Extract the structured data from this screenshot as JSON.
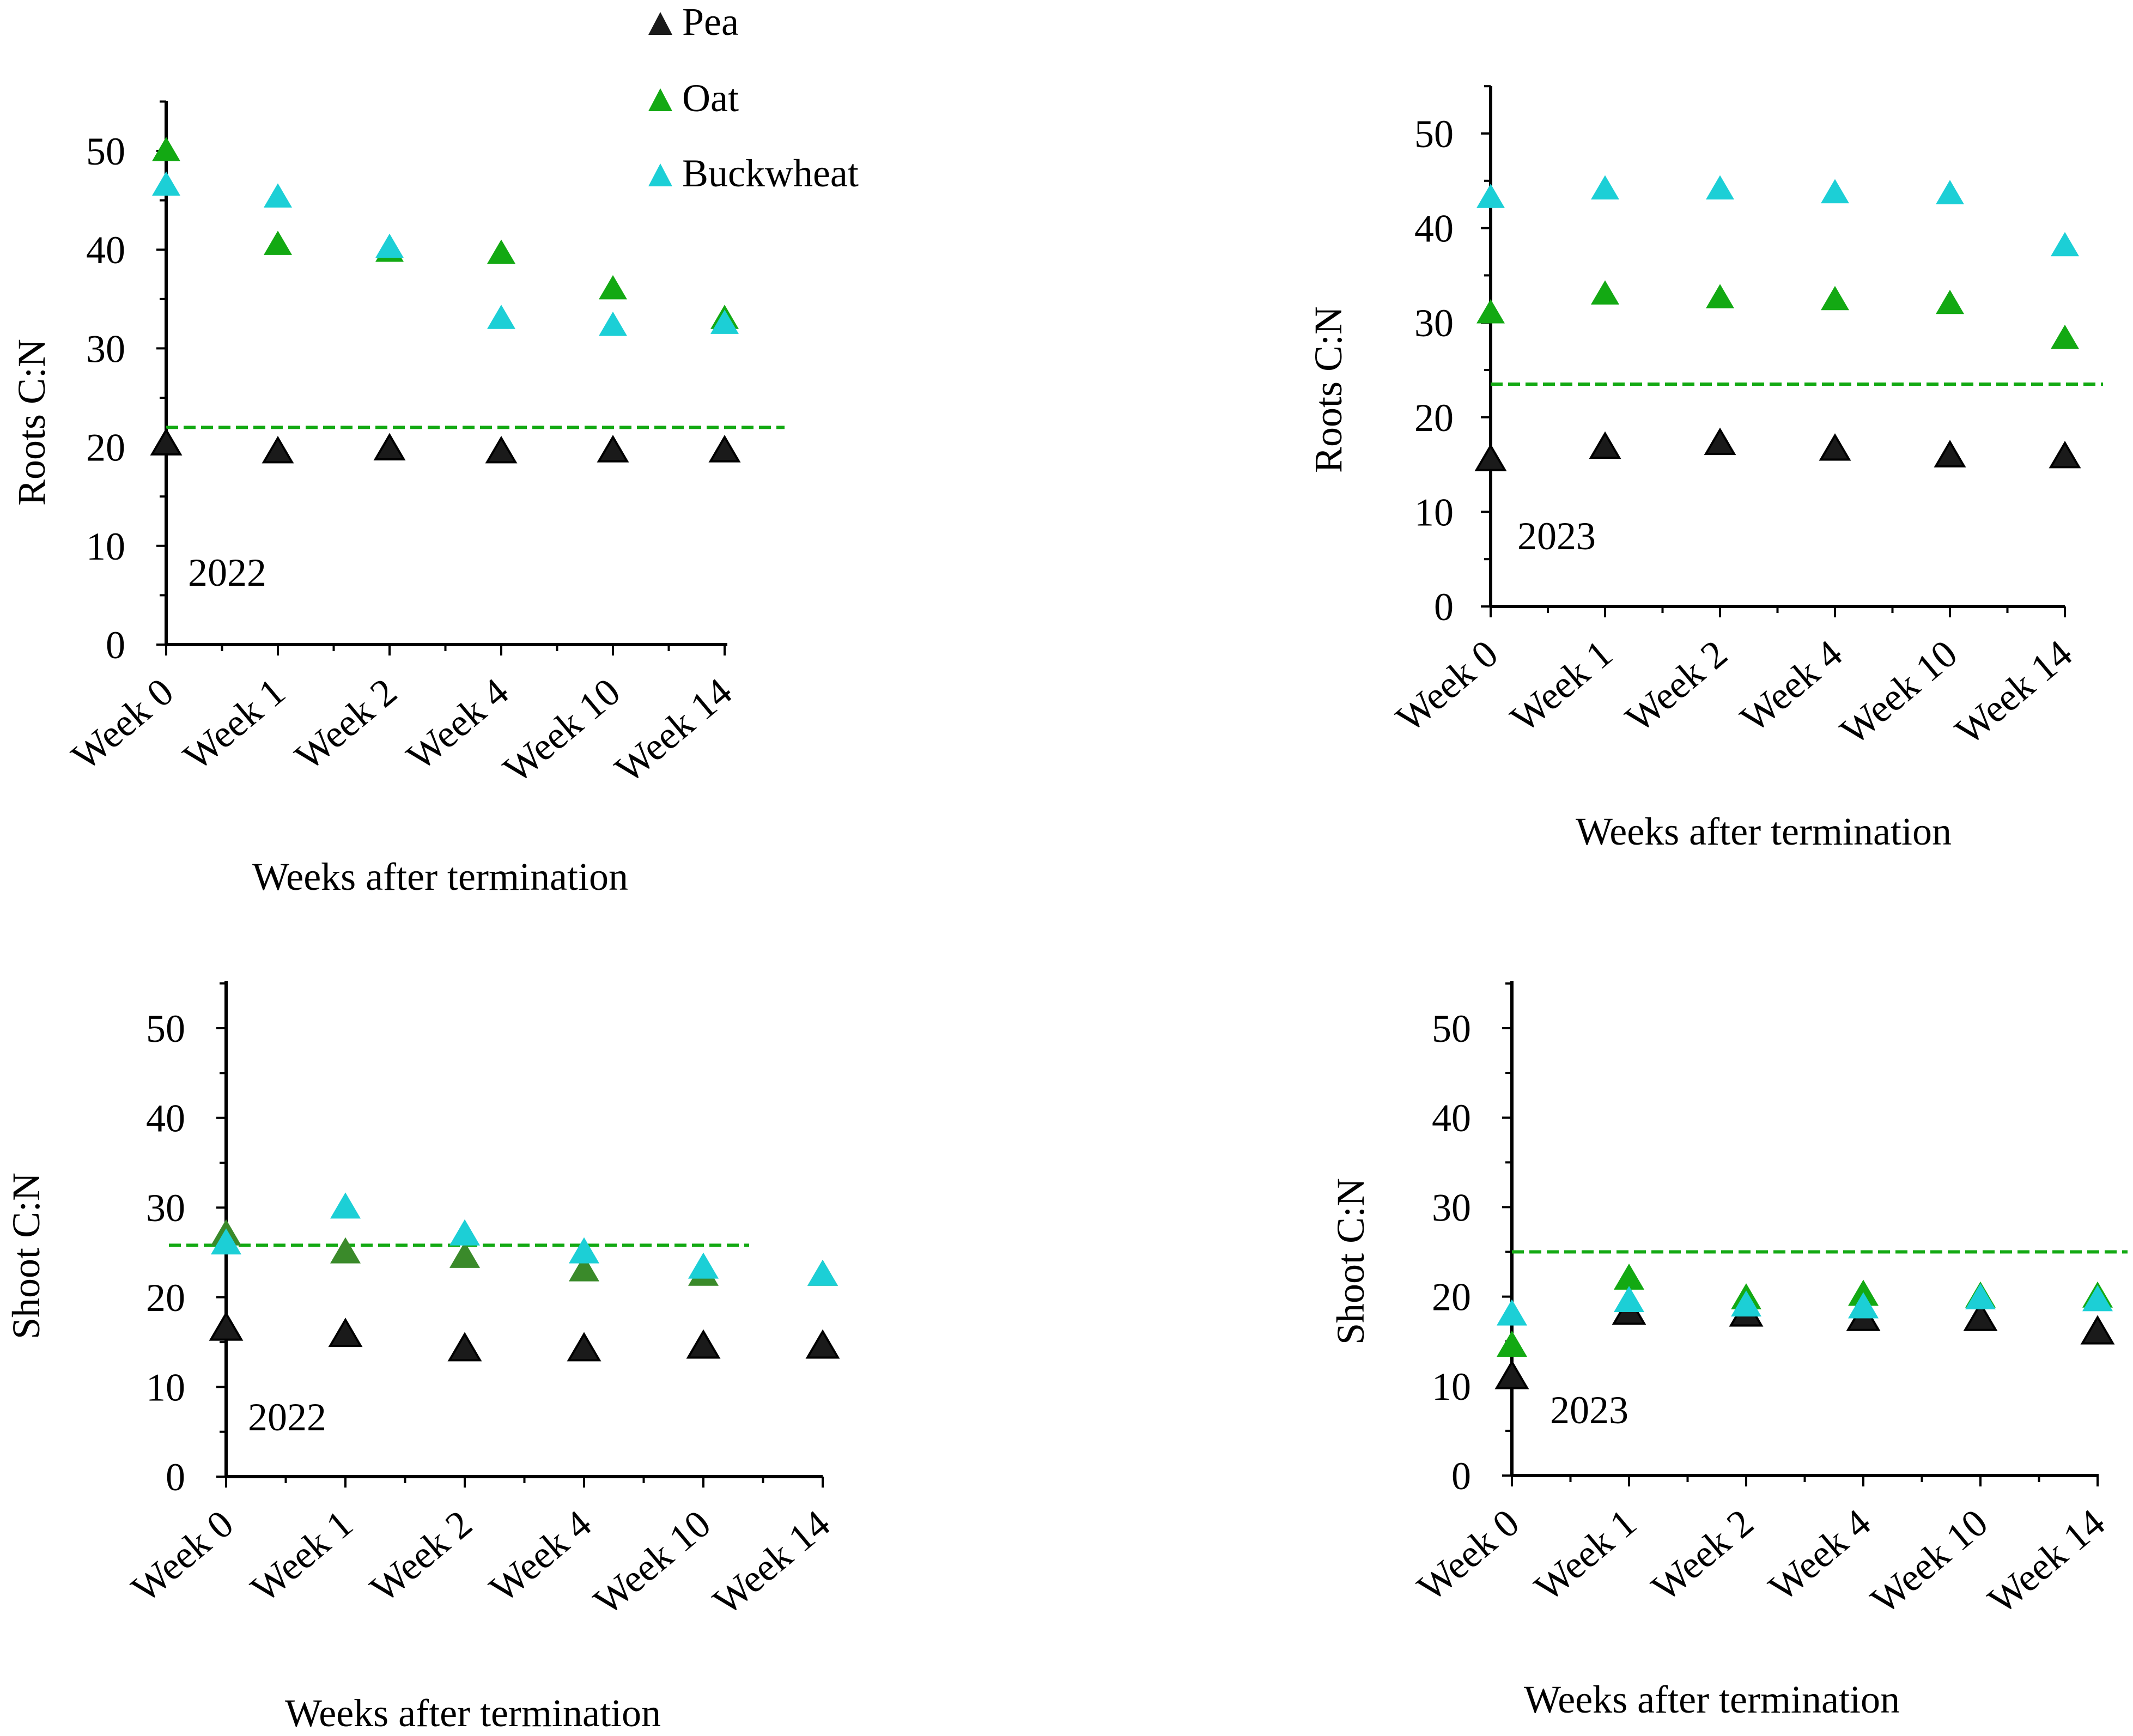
{
  "figure": {
    "legend": [
      {
        "name": "Pea",
        "color": "#1a1a1a"
      },
      {
        "name": "Oat",
        "color": "#13a913"
      },
      {
        "name": "Buckwheat",
        "color": "#1ccfd6"
      }
    ],
    "threshold_color": "#13a913"
  },
  "chart_data": [
    {
      "type": "scatter",
      "panel": "top-left",
      "year_label": "2022",
      "ylabel": "Roots C:N",
      "xlabel": "Weeks after termination",
      "categories": [
        "Week 0",
        "Week 1",
        "Week 2",
        "Week 4",
        "Week 10",
        "Week 14"
      ],
      "ylim": [
        0,
        55
      ],
      "yticks": [
        0,
        10,
        20,
        30,
        40,
        50
      ],
      "threshold": 22,
      "series": [
        {
          "name": "Pea",
          "values": [
            20.3,
            19.5,
            19.8,
            19.5,
            19.6,
            19.6
          ]
        },
        {
          "name": "Oat",
          "values": [
            50,
            40.5,
            39.8,
            39.6,
            36,
            33
          ]
        },
        {
          "name": "Buckwheat",
          "values": [
            46.5,
            45.3,
            40.2,
            33,
            32.3,
            32.5
          ]
        }
      ]
    },
    {
      "type": "scatter",
      "panel": "top-right",
      "year_label": "2023",
      "ylabel": "Roots C:N",
      "xlabel": "Weeks after termination",
      "categories": [
        "Week 0",
        "Week 1",
        "Week 2",
        "Week 4",
        "Week 10",
        "Week 14"
      ],
      "ylim": [
        0,
        55
      ],
      "yticks": [
        0,
        10,
        20,
        30,
        40,
        50
      ],
      "threshold": 23.5,
      "series": [
        {
          "name": "Pea",
          "values": [
            15.5,
            16.8,
            17.2,
            16.6,
            15.9,
            15.8
          ]
        },
        {
          "name": "Oat",
          "values": [
            31,
            33,
            32.6,
            32.4,
            32,
            28.3
          ]
        },
        {
          "name": "Buckwheat",
          "values": [
            43.2,
            44.1,
            44.1,
            43.7,
            43.6,
            38.1
          ]
        }
      ]
    },
    {
      "type": "scatter",
      "panel": "bottom-left",
      "year_label": "2022",
      "ylabel": "Shoot C:N",
      "xlabel": "Weeks after termination",
      "categories": [
        "Week 0",
        "Week 1",
        "Week 2",
        "Week 4",
        "Week 10",
        "Week 14"
      ],
      "ylim": [
        0,
        55
      ],
      "yticks": [
        0,
        10,
        20,
        30,
        40,
        50
      ],
      "threshold": 25.8,
      "series": [
        {
          "name": "Pea",
          "values": [
            16.5,
            15.8,
            14.2,
            14.2,
            14.5,
            14.5
          ]
        },
        {
          "name": "Oat",
          "values": [
            27,
            25,
            24.5,
            23,
            22.5,
            22.5
          ]
        },
        {
          "name": "Buckwheat",
          "values": [
            26,
            30,
            27,
            25,
            23.3,
            22.5
          ]
        }
      ]
    },
    {
      "type": "scatter",
      "panel": "bottom-right",
      "year_label": "2023",
      "ylabel": "Shoot  C:N",
      "xlabel": "Weeks after termination",
      "categories": [
        "Week 0",
        "Week 1",
        "Week 2",
        "Week 4",
        "Week 10",
        "Week 14"
      ],
      "ylim": [
        0,
        55
      ],
      "yticks": [
        0,
        10,
        20,
        30,
        40,
        50
      ],
      "threshold": 25,
      "series": [
        {
          "name": "Pea",
          "values": [
            11,
            18.2,
            18,
            17.5,
            17.5,
            16
          ]
        },
        {
          "name": "Oat",
          "values": [
            14.5,
            22,
            19.8,
            20.2,
            20,
            20
          ]
        },
        {
          "name": "Buckwheat",
          "values": [
            18,
            19.5,
            19,
            18.8,
            19.8,
            19.6
          ]
        }
      ]
    }
  ]
}
